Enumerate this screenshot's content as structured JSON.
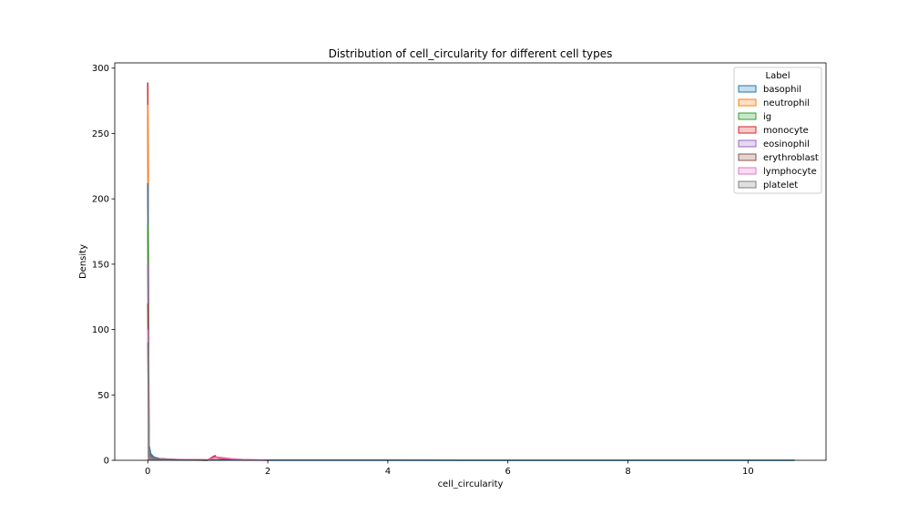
{
  "chart_data": {
    "type": "area",
    "title": "Distribution of cell_circularity for different cell types",
    "xlabel": "cell_circularity",
    "ylabel": "Density",
    "xlim": [
      -0.55,
      11.3
    ],
    "ylim": [
      0,
      304
    ],
    "xticks": [
      0,
      2,
      4,
      6,
      8,
      10
    ],
    "yticks": [
      0,
      50,
      100,
      150,
      200,
      250,
      300
    ],
    "grid": false,
    "legend": {
      "title": "Label",
      "placement": "top-right"
    },
    "series": [
      {
        "name": "basophil",
        "color": "#1f77b4",
        "x": [
          0,
          0.02,
          0.05,
          0.1,
          0.2,
          0.4,
          0.8,
          1.2,
          2,
          4,
          8,
          10.78
        ],
        "y": [
          212,
          12,
          5,
          2.5,
          1.2,
          0.6,
          0.3,
          0.2,
          0.1,
          0.05,
          0.03,
          0.02
        ]
      },
      {
        "name": "neutrophil",
        "color": "#ff7f0e",
        "x": [
          0,
          0.02,
          0.05,
          0.1,
          0.2,
          0.5,
          1
        ],
        "y": [
          272,
          10,
          4,
          2,
          1,
          0.4,
          0.1
        ]
      },
      {
        "name": "ig",
        "color": "#2ca02c",
        "x": [
          0,
          0.02,
          0.05,
          0.1,
          0.2,
          0.5,
          1
        ],
        "y": [
          180,
          8,
          3,
          1.5,
          0.8,
          0.3,
          0.1
        ]
      },
      {
        "name": "monocyte",
        "color": "#d62728",
        "x": [
          0,
          0.02,
          0.05,
          0.1,
          0.5,
          1.0,
          1.12,
          1.15,
          1.2,
          1.3,
          1.5,
          2
        ],
        "y": [
          289,
          9,
          3,
          1.5,
          0.5,
          0.3,
          3.5,
          2,
          1.5,
          1,
          0.5,
          0.1
        ]
      },
      {
        "name": "eosinophil",
        "color": "#9467bd",
        "x": [
          0,
          0.02,
          0.05,
          0.1,
          0.5,
          1
        ],
        "y": [
          150,
          6,
          3,
          1.5,
          0.4,
          0.1
        ]
      },
      {
        "name": "erythroblast",
        "color": "#8c564b",
        "x": [
          0,
          0.02,
          0.05,
          0.1,
          0.5,
          1
        ],
        "y": [
          120,
          5,
          2.5,
          1.2,
          0.4,
          0.1
        ]
      },
      {
        "name": "lymphocyte",
        "color": "#e377c2",
        "x": [
          0,
          0.02,
          0.05,
          0.1,
          1.0,
          1.15,
          1.25,
          1.4,
          1.6,
          2
        ],
        "y": [
          100,
          4,
          2,
          1,
          0.3,
          2.5,
          2,
          1.2,
          0.5,
          0.1
        ]
      },
      {
        "name": "platelet",
        "color": "#7f7f7f",
        "x": [
          0,
          0.02,
          0.05,
          0.1,
          0.5,
          1
        ],
        "y": [
          90,
          4,
          2,
          1,
          0.3,
          0.1
        ]
      }
    ]
  }
}
